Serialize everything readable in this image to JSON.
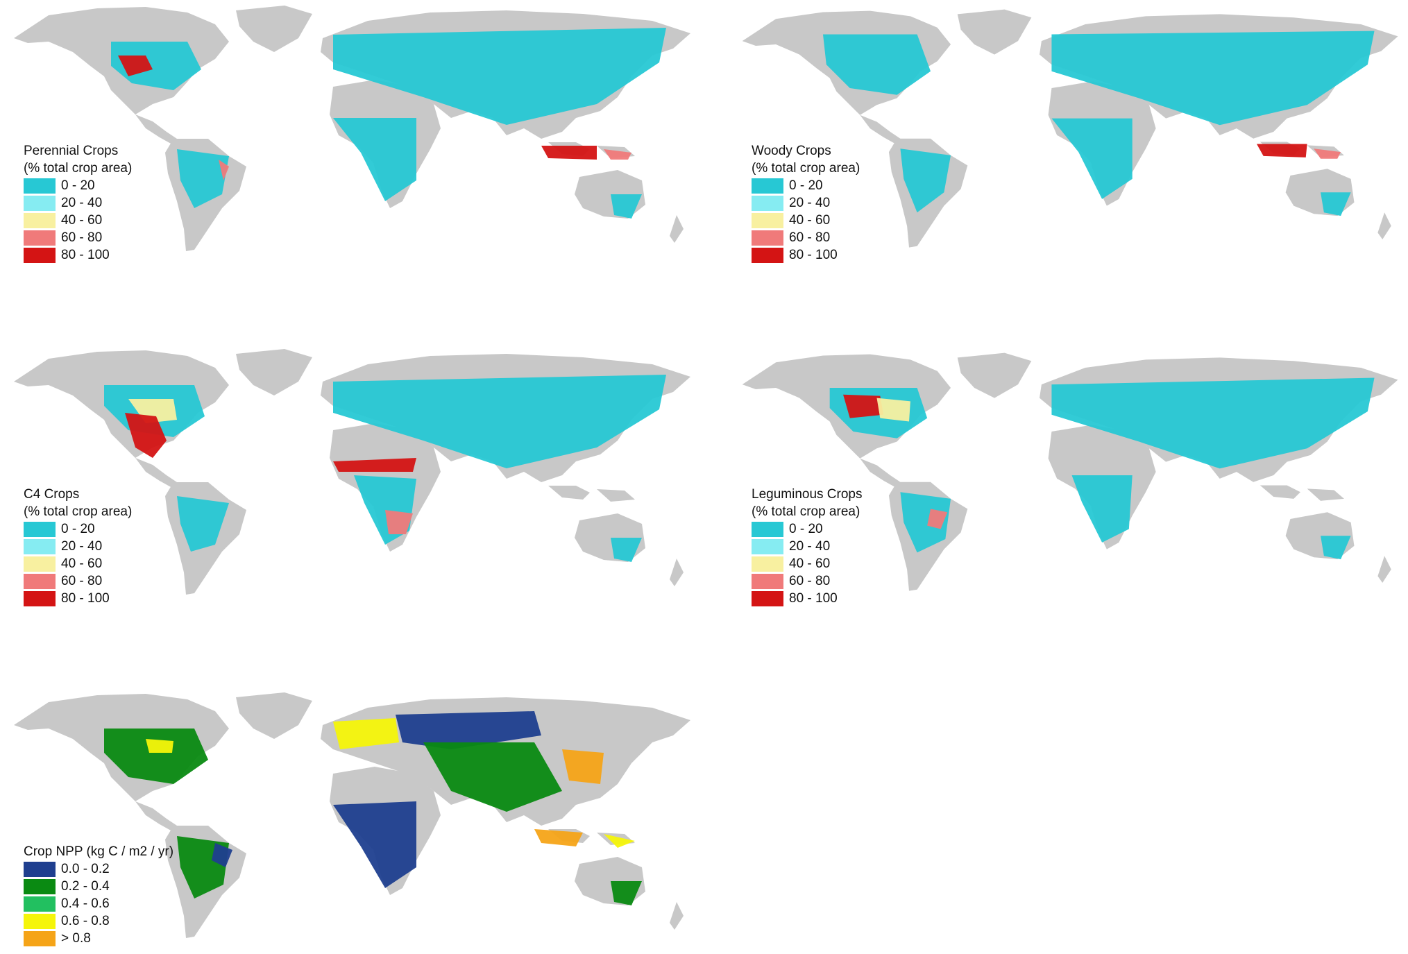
{
  "land_color": "#c8c8c8",
  "panels": [
    {
      "id": "perennial",
      "title_line1": "Perennial Crops",
      "title_line2": "(% total crop area)",
      "classes": [
        {
          "label": "0 - 20",
          "color": "#27c8d4"
        },
        {
          "label": "20 - 40",
          "color": "#86ecf2"
        },
        {
          "label": "40 - 60",
          "color": "#f8f0a0"
        },
        {
          "label": "60 - 80",
          "color": "#f07a7a"
        },
        {
          "label": "80 - 100",
          "color": "#d41414"
        }
      ]
    },
    {
      "id": "woody",
      "title_line1": "Woody Crops",
      "title_line2": "(% total crop area)",
      "classes": [
        {
          "label": "0 - 20",
          "color": "#27c8d4"
        },
        {
          "label": "20 - 40",
          "color": "#86ecf2"
        },
        {
          "label": "40 - 60",
          "color": "#f8f0a0"
        },
        {
          "label": "60 - 80",
          "color": "#f07a7a"
        },
        {
          "label": "80 - 100",
          "color": "#d41414"
        }
      ]
    },
    {
      "id": "c4",
      "title_line1": "C4 Crops",
      "title_line2": "(% total crop area)",
      "classes": [
        {
          "label": "0 - 20",
          "color": "#27c8d4"
        },
        {
          "label": "20 - 40",
          "color": "#86ecf2"
        },
        {
          "label": "40 - 60",
          "color": "#f8f0a0"
        },
        {
          "label": "60 - 80",
          "color": "#f07a7a"
        },
        {
          "label": "80 - 100",
          "color": "#d41414"
        }
      ]
    },
    {
      "id": "leguminous",
      "title_line1": "Leguminous Crops",
      "title_line2": "(% total crop area)",
      "classes": [
        {
          "label": "0 - 20",
          "color": "#27c8d4"
        },
        {
          "label": "20 - 40",
          "color": "#86ecf2"
        },
        {
          "label": "40 - 60",
          "color": "#f8f0a0"
        },
        {
          "label": "60 - 80",
          "color": "#f07a7a"
        },
        {
          "label": "80 - 100",
          "color": "#d41414"
        }
      ]
    },
    {
      "id": "npp",
      "title_line1": "Crop NPP (kg C / m2 / yr)",
      "title_line2": "",
      "classes": [
        {
          "label": "0.0 - 0.2",
          "color": "#1f3f8f"
        },
        {
          "label": "0.2 - 0.4",
          "color": "#0a8a12"
        },
        {
          "label": "0.4 - 0.6",
          "color": "#22c060"
        },
        {
          "label": "0.6 - 0.8",
          "color": "#f5f50a"
        },
        {
          "label": "> 0.8",
          "color": "#f5a418"
        }
      ]
    }
  ]
}
